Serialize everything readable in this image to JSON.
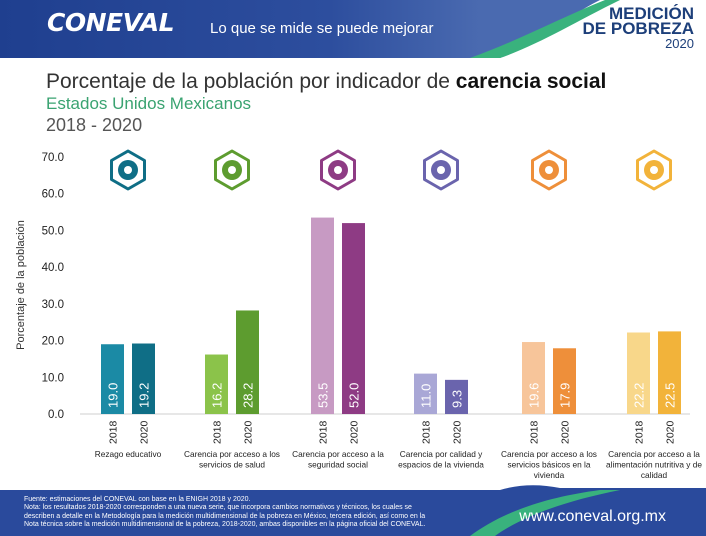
{
  "header": {
    "logo": "CONEVAL",
    "slogan": "Lo que se mide se puede mejorar",
    "badge_line1": "MEDICIÓN",
    "badge_line2": "DE POBREZA",
    "badge_year": "2020"
  },
  "title_prefix": "Porcentaje de la población por indicador de",
  "title_emphasis": "carencia social",
  "subtitle": "Estados Unidos Mexicanos",
  "period": "2018 - 2020",
  "chart_data": {
    "type": "bar",
    "title": "Porcentaje de la población por indicador de carencia social",
    "subtitle": "Estados Unidos Mexicanos",
    "xlabel": "",
    "ylabel": "Porcentaje de la población",
    "ylim": [
      0,
      70
    ],
    "yticks": [
      "0.0",
      "10.0",
      "20.0",
      "30.0",
      "40.0",
      "50.0",
      "60.0",
      "70.0"
    ],
    "grid": false,
    "legend": "none",
    "years": [
      "2018",
      "2020"
    ],
    "categories": [
      "Rezago educativo",
      "Carencia por acceso a los servicios de salud",
      "Carencia por acceso a la seguridad social",
      "Carencia por calidad y espacios de la vivienda",
      "Carencia por acceso a los servicios básicos en la vivienda",
      "Carencia por acceso a la alimentación nutritiva y de calidad"
    ],
    "category_lines": [
      [
        "Rezago educativo"
      ],
      [
        "Carencia por acceso a los",
        "servicios de salud"
      ],
      [
        "Carencia por acceso a la",
        "seguridad social"
      ],
      [
        "Carencia por calidad y",
        "espacios de la vivienda"
      ],
      [
        "Carencia por acceso a los",
        "servicios básicos en la",
        "vivienda"
      ],
      [
        "Carencia por acceso a la",
        "alimentación nutritiva y de",
        "calidad"
      ]
    ],
    "series": [
      {
        "name": "2018",
        "values": [
          19.0,
          16.2,
          53.5,
          11.0,
          19.6,
          22.2
        ]
      },
      {
        "name": "2020",
        "values": [
          19.2,
          28.2,
          52.0,
          9.3,
          17.9,
          22.5
        ]
      }
    ],
    "data_labels": [
      [
        "19.0",
        "19.2"
      ],
      [
        "16.2",
        "28.2"
      ],
      [
        "53.5",
        "52.0"
      ],
      [
        "11.0",
        "9.3"
      ],
      [
        "19.6",
        "17.9"
      ],
      [
        "22.2",
        "22.5"
      ]
    ],
    "colors": [
      [
        "#1b8aa5",
        "#0f6e86"
      ],
      [
        "#8bc34a",
        "#5d9c2f"
      ],
      [
        "#c79ac3",
        "#8e3b84"
      ],
      [
        "#a9a7d6",
        "#6a64ad"
      ],
      [
        "#f7c59a",
        "#ee8f3a"
      ],
      [
        "#f8d78a",
        "#f2b33a"
      ]
    ],
    "icons": [
      "education-icon",
      "health-icon",
      "social-security-icon",
      "housing-icon",
      "basic-services-icon",
      "food-icon"
    ]
  },
  "footer": {
    "note_lines": [
      "Fuente: estimaciones del CONEVAL con base en la ENIGH 2018 y 2020.",
      "Nota: los resultados 2018-2020 corresponden a una nueva serie, que incorpora cambios normativos y técnicos, los cuales se",
      "describen a detalle en la Metodología para la medición multidimensional de la pobreza en México, tercera edición, así como en la",
      "Nota técnica sobre la medición multidimensional de la pobreza, 2018-2020, ambas disponibles en la página oficial del CONEVAL."
    ],
    "website": "www.coneval.org.mx"
  }
}
